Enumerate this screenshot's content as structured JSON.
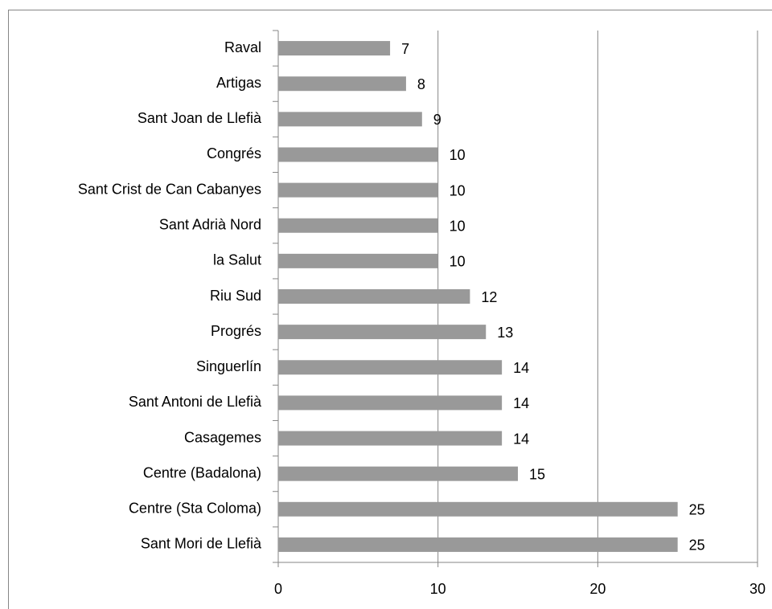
{
  "chart_data": {
    "type": "hbar",
    "categories": [
      "Raval",
      "Artigas",
      "Sant Joan de Llefià",
      "Congrés",
      "Sant Crist de Can Cabanyes",
      "Sant Adrià Nord",
      "la Salut",
      "Riu Sud",
      "Progrés",
      "Singuerlín",
      "Sant Antoni de Llefià",
      "Casagemes",
      "Centre (Badalona)",
      "Centre (Sta Coloma)",
      "Sant Mori de Llefià"
    ],
    "values": [
      7,
      8,
      9,
      10,
      10,
      10,
      10,
      12,
      13,
      14,
      14,
      14,
      15,
      25,
      25
    ],
    "color": "#999999",
    "xlim": [
      0,
      30
    ],
    "xticks": [
      0,
      10,
      20,
      30
    ],
    "grid": true
  }
}
